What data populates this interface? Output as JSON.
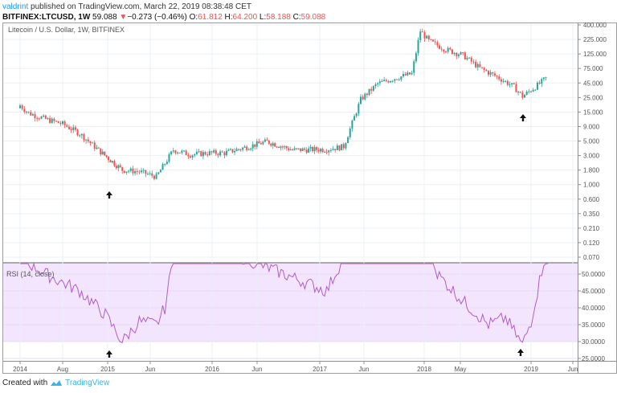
{
  "header": {
    "publisher": "valdrint",
    "published_text": " published on TradingView.com, March 22, 2019 08:38:48 CET",
    "symbol": "BITFINEX:LTCUSD, 1W",
    "last": "59.088",
    "change_arrow": "▼",
    "change": "−0.273 (−0.46%)",
    "o_label": "O:",
    "o": "61.812",
    "h_label": "H:",
    "h": "64.200",
    "l_label": "L:",
    "l": "58.188",
    "c_label": "C:",
    "c": "59.088"
  },
  "footer": {
    "created_with": "Created with",
    "brand": "TradingView"
  },
  "colors": {
    "up": "#26a69a",
    "down": "#ef5350",
    "rsi_line": "#b05cc8",
    "rsi_band": "#f3e5fd",
    "grid": "#e8f0f6",
    "accent": "#2196f3"
  },
  "chart_data": [
    {
      "type": "candlestick",
      "title": "Litecoin / U.S. Dollar, 1W, BITFINEX",
      "xlabel": "",
      "ylabel": "",
      "y_scale": "log",
      "y_ticks": [
        "400.000",
        "225.000",
        "125.000",
        "75.000",
        "45.000",
        "25.000",
        "15.000",
        "9.000",
        "5.000",
        "3.000",
        "1.800",
        "1.000",
        "0.600",
        "0.350",
        "0.210",
        "0.120",
        "0.070"
      ],
      "x_ticks": [
        "2014",
        "Aug",
        "2015",
        "Jun",
        "2016",
        "Jun",
        "2017",
        "Jun",
        "2018",
        "May",
        "2019",
        "Jun"
      ],
      "grid": true,
      "approx_close_path": [
        {
          "x": "2014-01",
          "close": 20
        },
        {
          "x": "2014-02",
          "close": 15
        },
        {
          "x": "2014-04",
          "close": 12
        },
        {
          "x": "2014-06",
          "close": 10
        },
        {
          "x": "2014-08",
          "close": 7
        },
        {
          "x": "2014-10",
          "close": 4
        },
        {
          "x": "2015-01",
          "close": 1.8
        },
        {
          "x": "2015-03",
          "close": 1.7
        },
        {
          "x": "2015-05",
          "close": 1.4
        },
        {
          "x": "2015-07",
          "close": 3.8
        },
        {
          "x": "2015-09",
          "close": 3.2
        },
        {
          "x": "2015-11",
          "close": 3.4
        },
        {
          "x": "2016-01",
          "close": 3.4
        },
        {
          "x": "2016-06",
          "close": 5.2
        },
        {
          "x": "2016-09",
          "close": 3.8
        },
        {
          "x": "2017-01",
          "close": 3.9
        },
        {
          "x": "2017-03",
          "close": 4.3
        },
        {
          "x": "2017-05",
          "close": 25
        },
        {
          "x": "2017-07",
          "close": 45
        },
        {
          "x": "2017-09",
          "close": 55
        },
        {
          "x": "2017-11",
          "close": 65
        },
        {
          "x": "2017-12",
          "close": 320
        },
        {
          "x": "2018-01",
          "close": 220
        },
        {
          "x": "2018-03",
          "close": 160
        },
        {
          "x": "2018-05",
          "close": 130
        },
        {
          "x": "2018-07",
          "close": 80
        },
        {
          "x": "2018-09",
          "close": 58
        },
        {
          "x": "2018-11",
          "close": 40
        },
        {
          "x": "2018-12",
          "close": 28
        },
        {
          "x": "2019-02",
          "close": 45
        },
        {
          "x": "2019-03",
          "close": 59.088
        }
      ],
      "annotations": [
        "up-arrow at 2015 low",
        "up-arrow at Dec 2018 low"
      ]
    },
    {
      "type": "line",
      "title": "RSI (14, close)",
      "y_ticks": [
        "50.0000",
        "45.0000",
        "40.0000",
        "35.0000",
        "30.0000",
        "25.0000"
      ],
      "ylim": [
        24,
        53
      ],
      "band": [
        30,
        70
      ],
      "x": [
        "2014-01",
        "2014-04",
        "2014-08",
        "2014-11",
        "2015-01",
        "2015-03",
        "2015-05",
        "2015-06",
        "2015-08",
        "2016-03",
        "2016-06",
        "2017-01",
        "2017-06",
        "2017-12",
        "2018-02",
        "2018-05",
        "2018-08",
        "2018-10",
        "2018-12",
        "2019-01",
        "2019-03"
      ],
      "values": [
        55,
        50,
        45,
        38,
        30,
        36,
        35,
        40,
        70,
        55,
        52,
        45,
        70,
        75,
        50,
        42,
        35,
        37,
        29,
        36,
        60
      ],
      "annotations": [
        "up-arrow at 2015 RSI low",
        "up-arrow at Dec 2018 RSI low"
      ]
    }
  ],
  "rsi_label": "RSI (14, close)",
  "main_title": "Litecoin / U.S. Dollar, 1W, BITFINEX"
}
